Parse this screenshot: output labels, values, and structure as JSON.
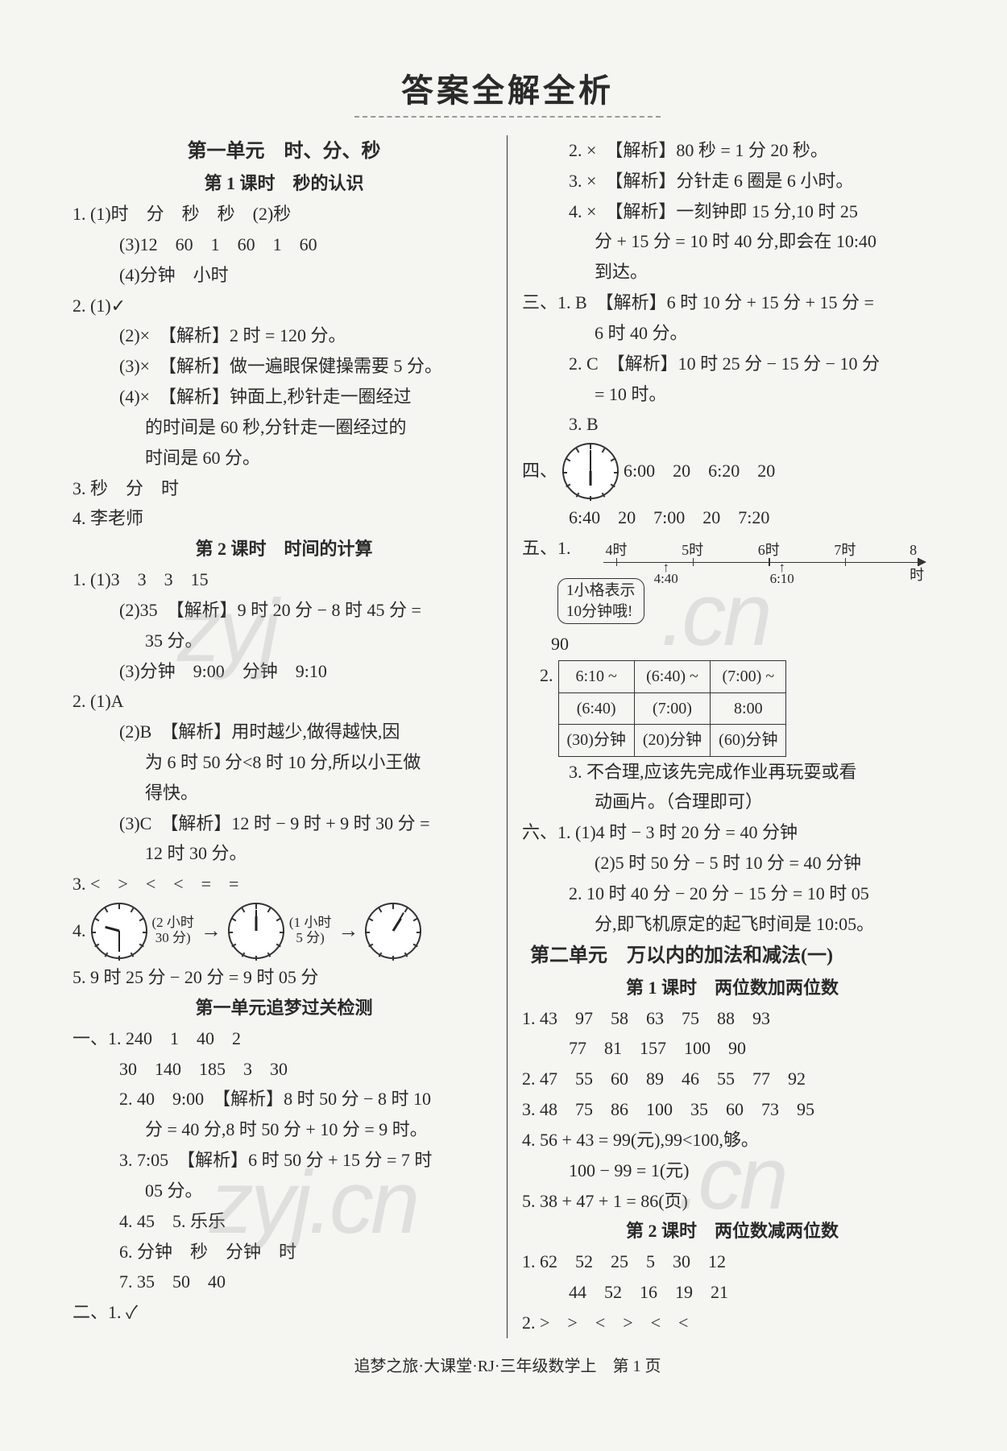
{
  "title": "答案全解全析",
  "footer": "追梦之旅·大课堂·RJ·三年级数学上　第 1 页",
  "watermark_a": "zyj",
  "watermark_b": ".cn",
  "left": {
    "unit1": "第一单元　时、分、秒",
    "lesson1": "第 1 课时　秒的认识",
    "p1_1": "1. (1)时　分　秒　秒　(2)秒",
    "p1_2": "(3)12　60　1　60　1　60",
    "p1_3": "(4)分钟　小时",
    "p2_1": "2. (1)✓",
    "p2_2": "(2)×　【解析】2 时 = 120 分。",
    "p2_3": "(3)×　【解析】做一遍眼保健操需要 5 分。",
    "p2_4a": "(4)×　【解析】钟面上,秒针走一圈经过",
    "p2_4b": "的时间是 60 秒,分针走一圈经过的",
    "p2_4c": "时间是 60 分。",
    "p3": "3. 秒　分　时",
    "p4": "4. 李老师",
    "lesson2": "第 2 课时　时间的计算",
    "q1_1": "1. (1)3　3　3　15",
    "q1_2a": "(2)35　【解析】9 时 20 分 − 8 时 45 分 =",
    "q1_2b": "35 分。",
    "q1_3": "(3)分钟　9:00　分钟　9:10",
    "q2_1": "2. (1)A",
    "q2_2a": "(2)B　【解析】用时越少,做得越快,因",
    "q2_2b": "为 6 时 50 分<8 时 10 分,所以小王做",
    "q2_2c": "得快。",
    "q2_3a": "(3)C　【解析】12 时 − 9 时 + 9 时 30 分 =",
    "q2_3b": "12 时 30 分。",
    "q3": "3. <　>　<　<　=　=",
    "q4_label": "4.",
    "q4_a1": "(2 小时",
    "q4_a1b": "30 分)",
    "q4_a2": "(1 小时",
    "q4_a2b": "5 分)",
    "q5": "5. 9 时 25 分 − 20 分 = 9 时 05 分",
    "check_title": "第一单元追梦过关检测",
    "c1_1a": "一、1. 240　1　40　2",
    "c1_1b": "30　140　185　3　30",
    "c1_2a": "2. 40　9:00　【解析】8 时 50 分 − 8 时 10",
    "c1_2b": "分 = 40 分,8 时 50 分 + 10 分 = 9 时。",
    "c1_3a": "3. 7:05　【解析】6 时 50 分 + 15 分 = 7 时",
    "c1_3b": "05 分。",
    "c1_4": "4. 45　5. 乐乐",
    "c1_6": "6. 分钟　秒　分钟　时",
    "c1_7": "7. 35　50　40",
    "c2_1": "二、1. ✓"
  },
  "right": {
    "r1": "2. ×　【解析】80 秒 = 1 分 20 秒。",
    "r2": "3. ×　【解析】分针走 6 圈是 6 小时。",
    "r3a": "4. ×　【解析】一刻钟即 15 分,10 时 25",
    "r3b": "分 + 15 分 = 10 时 40 分,即会在 10:40",
    "r3c": "到达。",
    "r4a": "三、1. B　【解析】6 时 10 分 + 15 分 + 15 分 =",
    "r4b": "6 时 40 分。",
    "r4c": "2. C　【解析】10 时 25 分 − 15 分 − 10 分",
    "r4d": "= 10 时。",
    "r4e": "3. B",
    "r5_label": "四、",
    "r5_1": "6:00　20　6:20　20",
    "r5_2": "6:40　20　7:00　20　7:20",
    "r6_label": "五、1.",
    "axis_labels": [
      "4时",
      "5时",
      "6时",
      "7时",
      "8时"
    ],
    "axis_sub": [
      "4:40",
      "6:10"
    ],
    "bubble1": "1小格表示",
    "bubble2": "10分钟哦!",
    "r6_90": "90",
    "table": {
      "row1": [
        "6:10 ~",
        "(6:40) ~",
        "(7:00) ~"
      ],
      "row2": [
        "(6:40)",
        "(7:00)",
        "8:00"
      ],
      "row3": [
        "(30)分钟",
        "(20)分钟",
        "(60)分钟"
      ]
    },
    "r6_2": "2.",
    "r7a": "3. 不合理,应该先完成作业再玩耍或看",
    "r7b": "动画片。（合理即可）",
    "r8a": "六、1. (1)4 时 − 3 时 20 分 = 40 分钟",
    "r8b": "(2)5 时 50 分 − 5 时 10 分 = 40 分钟",
    "r8c": "2. 10 时 40 分 − 20 分 − 15 分 = 10 时 05",
    "r8d": "分,即飞机原定的起飞时间是 10:05。",
    "unit2": "第二单元　万以内的加法和减法(一)",
    "lesson2_1": "第 1 课时　两位数加两位数",
    "s1a": "1. 43　97　58　63　75　88　93",
    "s1b": "77　81　157　100　90",
    "s2": "2. 47　55　60　89　46　55　77　92",
    "s3": "3. 48　75　86　100　35　60　73　95",
    "s4a": "4. 56 + 43 = 99(元),99<100,够。",
    "s4b": "100 − 99 = 1(元)",
    "s5": "5. 38 + 47 + 1 = 86(页)",
    "lesson2_2": "第 2 课时　两位数减两位数",
    "t1a": "1. 62　52　25　5　30　12",
    "t1b": "44　52　16　19　21",
    "t2": "2. >　>　<　>　<　<"
  }
}
